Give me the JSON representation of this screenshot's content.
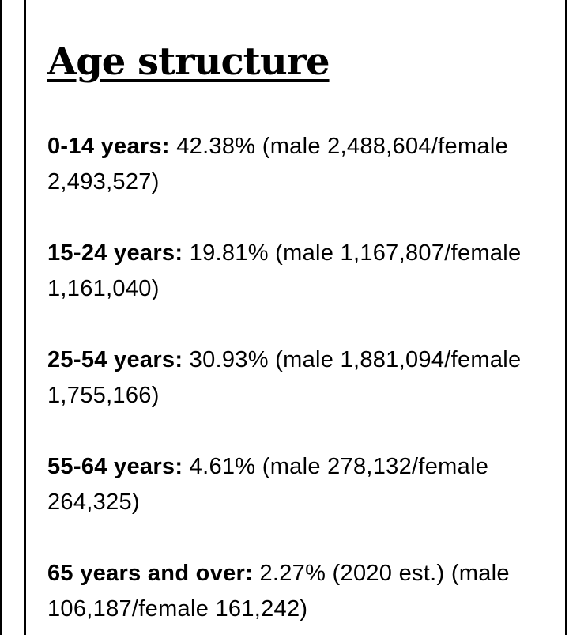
{
  "title": "Age structure",
  "entries": [
    {
      "label": "0-14 years:",
      "text": "42.38% (male 2,488,604/female 2,493,527)"
    },
    {
      "label": "15-24 years:",
      "text": "19.81% (male 1,167,807/female 1,161,040)"
    },
    {
      "label": "25-54 years:",
      "text": "30.93% (male 1,881,094/female 1,755,166)"
    },
    {
      "label": "55-64 years:",
      "text": "4.61% (male 278,132/female 264,325)"
    },
    {
      "label": "65 years and over:",
      "text": "2.27% (2020 est.) (male 106,187/female 161,242)"
    }
  ]
}
